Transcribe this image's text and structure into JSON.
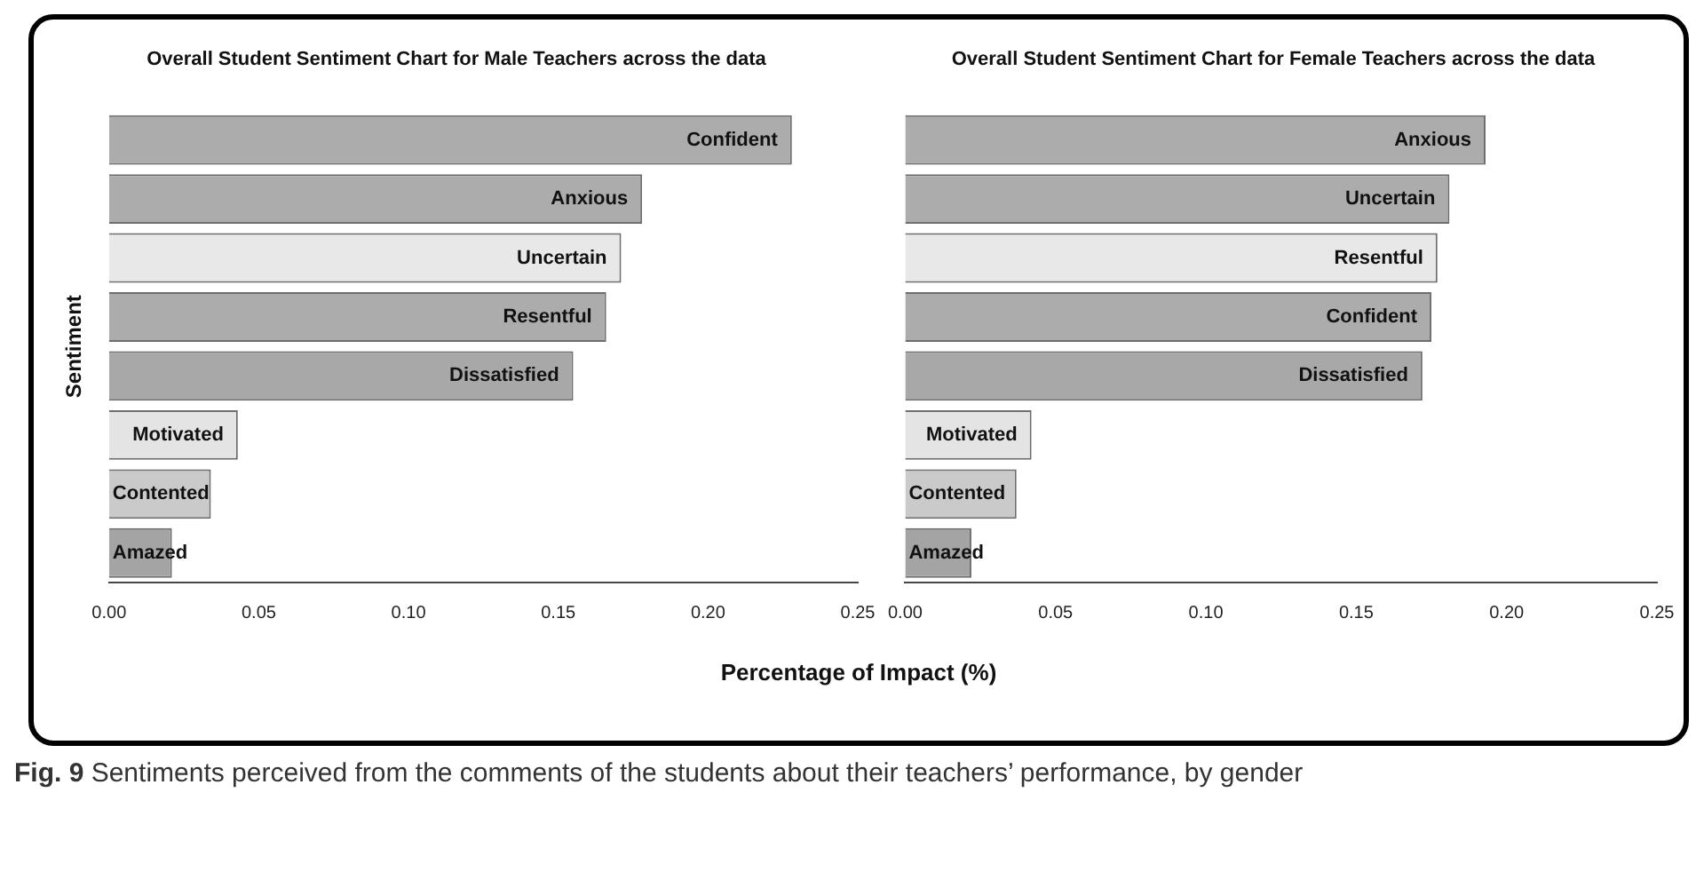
{
  "chart_data": [
    {
      "type": "bar",
      "orientation": "horizontal",
      "title": "Overall Student Sentiment Chart for Male Teachers across the data",
      "xlabel": "Percentage of Impact (%)",
      "ylabel": "Sentiment",
      "categories": [
        "Confident",
        "Anxious",
        "Uncertain",
        "Resentful",
        "Dissatisfied",
        "Motivated",
        "Contented",
        "Amazed"
      ],
      "values": [
        0.228,
        0.178,
        0.171,
        0.166,
        0.155,
        0.043,
        0.034,
        0.021
      ],
      "colors": [
        "#acacac",
        "#acacac",
        "#e8e8e8",
        "#acacac",
        "#a8a8a8",
        "#e4e4e4",
        "#cacaca",
        "#a4a4a4"
      ],
      "xlim": [
        0,
        0.25
      ],
      "xticks": [
        {
          "value": 0,
          "label": "0.00"
        },
        {
          "value": 0.05,
          "label": "0.05"
        },
        {
          "value": 0.1,
          "label": "0.10"
        },
        {
          "value": 0.15,
          "label": "0.15"
        },
        {
          "value": 0.2,
          "label": "0.20"
        },
        {
          "value": 0.25,
          "label": "0.25"
        }
      ],
      "tick_labels": "x",
      "grid": false,
      "legend": false,
      "annotations": [
        "Fig. 9 Sentiments perceived from the comments of the students about their teachers’ performance, by gender"
      ]
    },
    {
      "type": "bar",
      "orientation": "horizontal",
      "title": "Overall Student Sentiment Chart for Female Teachers across the data",
      "categories": [
        "Anxious",
        "Uncertain",
        "Resentful",
        "Confident",
        "Dissatisfied",
        "Motivated",
        "Contented",
        "Amazed"
      ],
      "values": [
        0.193,
        0.181,
        0.177,
        0.175,
        0.172,
        0.042,
        0.037,
        0.022
      ],
      "colors": [
        "#acacac",
        "#acacac",
        "#e8e8e8",
        "#acacac",
        "#a8a8a8",
        "#e4e4e4",
        "#cacaca",
        "#a4a4a4"
      ],
      "xlim": [
        0,
        0.25
      ],
      "xticks": [
        {
          "value": 0,
          "label": "0.00"
        },
        {
          "value": 0.05,
          "label": "0.05"
        },
        {
          "value": 0.1,
          "label": "0.10"
        },
        {
          "value": 0.15,
          "label": "0.15"
        },
        {
          "value": 0.2,
          "label": "0.20"
        },
        {
          "value": 0.25,
          "label": "0.25"
        }
      ],
      "tick_labels": "x",
      "grid": false,
      "legend": false
    }
  ]
}
